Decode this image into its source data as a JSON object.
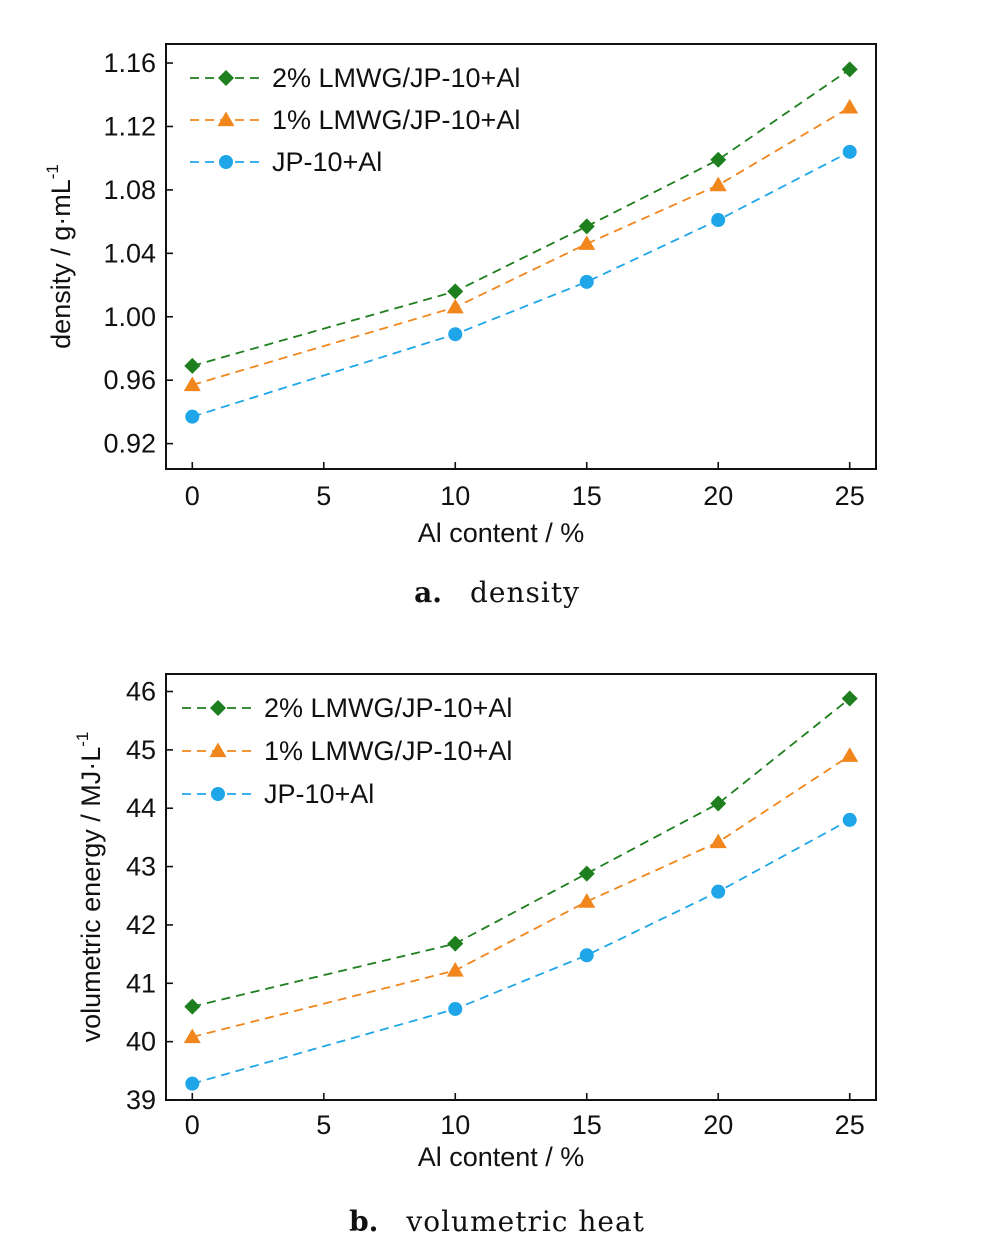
{
  "chart_data": [
    {
      "type": "line",
      "caption_letter": "a.",
      "caption_text": "density",
      "xlabel": "Al content / %",
      "ylabel": "density / g·mL",
      "ylabel_superscript": "-1",
      "xlim": [
        -1,
        26
      ],
      "ylim": [
        0.904,
        1.172
      ],
      "xticks": [
        0,
        5,
        10,
        15,
        20,
        25
      ],
      "yticks": [
        0.92,
        0.96,
        1.0,
        1.04,
        1.08,
        1.12,
        1.16
      ],
      "ytick_labels": [
        "0.92",
        "0.96",
        "1.00",
        "1.04",
        "1.08",
        "1.12",
        "1.16"
      ],
      "legend_position": "top-left",
      "grid": false,
      "x": [
        0,
        10,
        15,
        20,
        25
      ],
      "series": [
        {
          "name": "2% LMWG/JP-10+Al",
          "color": "#1e7f1e",
          "marker": "diamond",
          "values": [
            0.969,
            1.016,
            1.057,
            1.099,
            1.156
          ]
        },
        {
          "name": "1% LMWG/JP-10+Al",
          "color": "#f0861c",
          "marker": "triangle",
          "values": [
            0.957,
            1.006,
            1.046,
            1.083,
            1.132
          ]
        },
        {
          "name": "JP-10+Al",
          "color": "#1ea6e8",
          "marker": "circle",
          "values": [
            0.937,
            0.989,
            1.022,
            1.061,
            1.104
          ]
        }
      ]
    },
    {
      "type": "line",
      "caption_letter": "b.",
      "caption_text": "volumetric heat",
      "xlabel": "Al content / %",
      "ylabel": "volumetric energy / MJ·L",
      "ylabel_superscript": "-1",
      "xlim": [
        -1,
        26
      ],
      "ylim": [
        39.0,
        46.3
      ],
      "xticks": [
        0,
        5,
        10,
        15,
        20,
        25
      ],
      "yticks": [
        39,
        40,
        41,
        42,
        43,
        44,
        45,
        46
      ],
      "ytick_labels": [
        "39",
        "40",
        "41",
        "42",
        "43",
        "44",
        "45",
        "46"
      ],
      "legend_position": "top-left",
      "grid": false,
      "x": [
        0,
        10,
        15,
        20,
        25
      ],
      "series": [
        {
          "name": "2% LMWG/JP-10+Al",
          "color": "#1e7f1e",
          "marker": "diamond",
          "values": [
            40.6,
            41.68,
            42.88,
            44.08,
            45.88
          ]
        },
        {
          "name": "1% LMWG/JP-10+Al",
          "color": "#f0861c",
          "marker": "triangle",
          "values": [
            40.08,
            41.22,
            42.4,
            43.42,
            44.9
          ]
        },
        {
          "name": "JP-10+Al",
          "color": "#1ea6e8",
          "marker": "circle",
          "values": [
            39.28,
            40.56,
            41.48,
            42.57,
            43.8
          ]
        }
      ]
    }
  ]
}
